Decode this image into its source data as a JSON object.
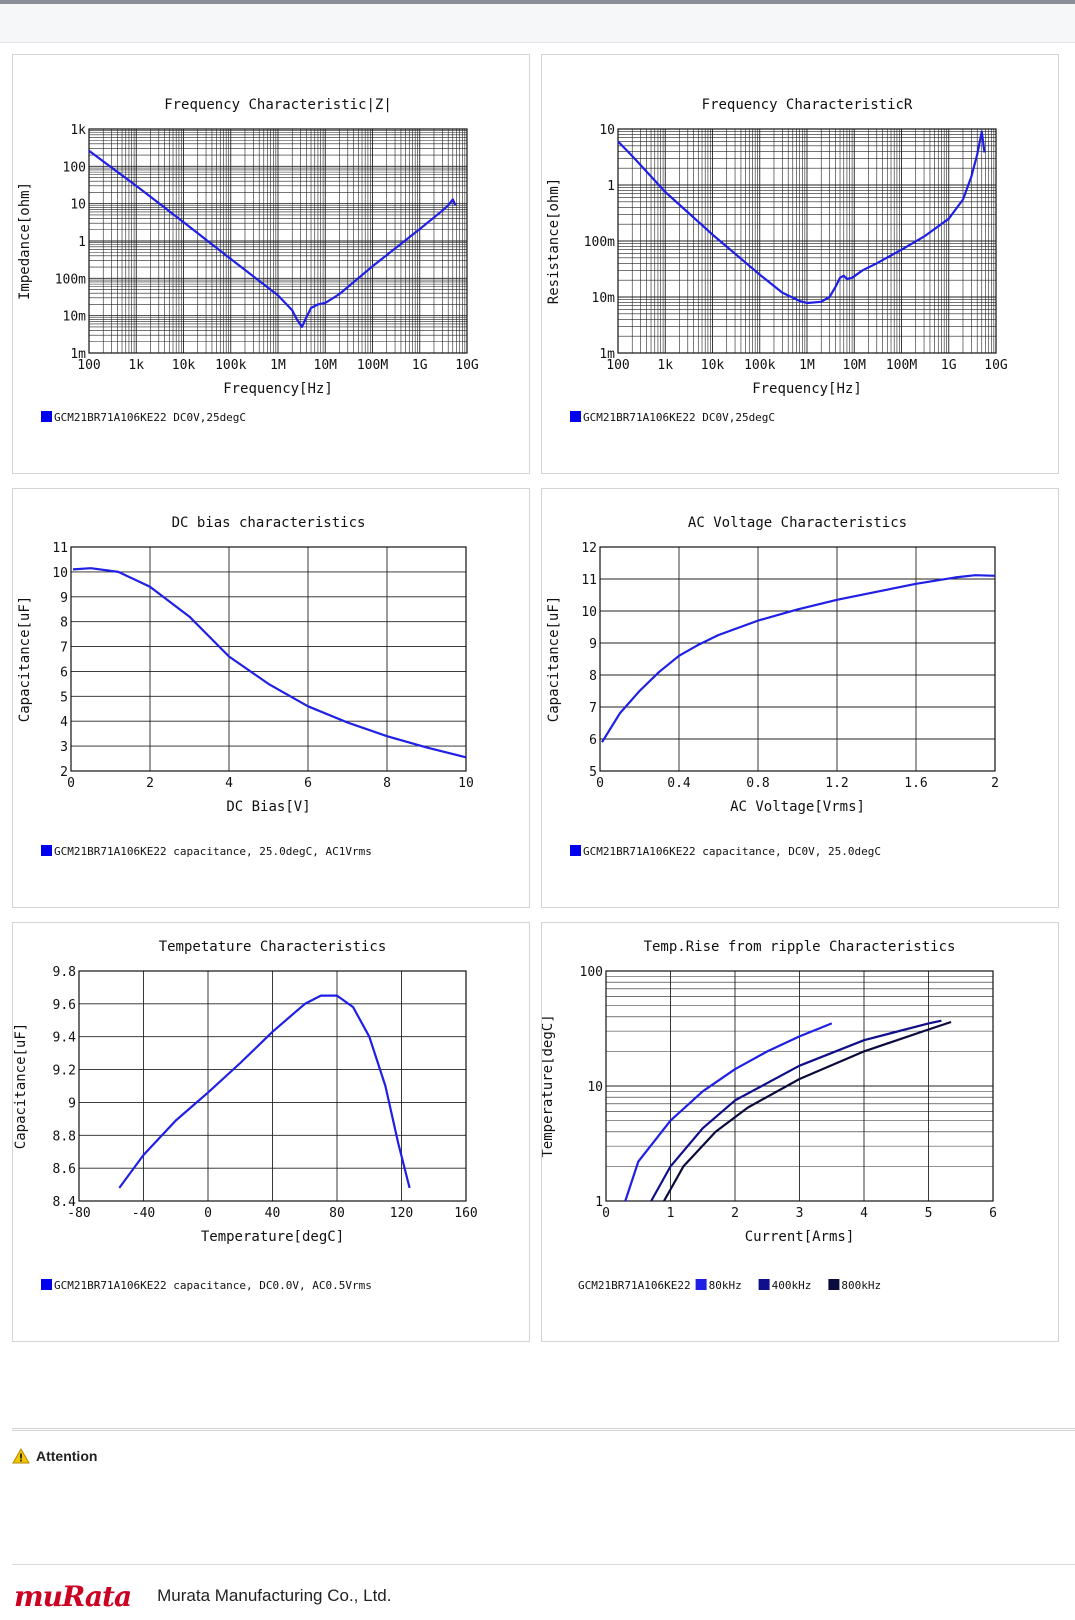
{
  "colors": {
    "series_blue": "#1f1fe6",
    "series_navy": "#0f0f8c",
    "series_dark": "#0a0a3c",
    "legend_blue": "#0000ee",
    "logo_red": "#cc0022",
    "attention_yellow": "#f5c400"
  },
  "page": {
    "attention_label": "Attention",
    "attention_icon": "warning-icon",
    "logo_text": "muRata",
    "company_name": "Murata Manufacturing Co., Ltd."
  },
  "chart_data": [
    {
      "id": "impedance",
      "type": "line",
      "title": "Frequency  Characteristic|Z|",
      "xlabel": "Frequency[Hz]",
      "ylabel": "Impedance[ohm]",
      "xscale": "log",
      "yscale": "log",
      "xlim": [
        100,
        10000000000
      ],
      "ylim": [
        0.001,
        1000
      ],
      "xticks": [
        100,
        1000,
        10000,
        100000,
        1000000,
        10000000,
        100000000,
        1000000000,
        10000000000
      ],
      "xticklabels": [
        "100",
        "1k",
        "10k",
        "100k",
        "1M",
        "10M",
        "100M",
        "1G",
        "10G"
      ],
      "yticks": [
        0.001,
        0.01,
        0.1,
        1,
        10,
        100,
        1000
      ],
      "yticklabels": [
        "1m",
        "10m",
        "100m",
        "1",
        "10",
        "100",
        "1k"
      ],
      "grid": true,
      "legend": [
        {
          "label": "GCM21BR71A106KE22 DC0V,25degC",
          "color": "#0000ee"
        }
      ],
      "series": [
        {
          "color": "#1f1fe6",
          "points": [
            [
              100,
              260
            ],
            [
              1000,
              30
            ],
            [
              10000,
              3.2
            ],
            [
              100000,
              0.33
            ],
            [
              1000000,
              0.035
            ],
            [
              2000000,
              0.014
            ],
            [
              2500000,
              0.008
            ],
            [
              3200000,
              0.005
            ],
            [
              4000000,
              0.009
            ],
            [
              5000000,
              0.016
            ],
            [
              7000000,
              0.02
            ],
            [
              10000000,
              0.022
            ],
            [
              20000000,
              0.038
            ],
            [
              100000000,
              0.21
            ],
            [
              1000000000,
              2.1
            ],
            [
              3000000000,
              6.5
            ],
            [
              4000000000,
              9
            ],
            [
              5000000000,
              13
            ],
            [
              5700000000,
              9
            ]
          ]
        }
      ]
    },
    {
      "id": "resistance",
      "type": "line",
      "title": "Frequency  CharacteristicR",
      "xlabel": "Frequency[Hz]",
      "ylabel": "Resistance[ohm]",
      "xscale": "log",
      "yscale": "log",
      "xlim": [
        100,
        10000000000
      ],
      "ylim": [
        0.001,
        10
      ],
      "xticks": [
        100,
        1000,
        10000,
        100000,
        1000000,
        10000000,
        100000000,
        1000000000,
        10000000000
      ],
      "xticklabels": [
        "100",
        "1k",
        "10k",
        "100k",
        "1M",
        "10M",
        "100M",
        "1G",
        "10G"
      ],
      "yticks": [
        0.001,
        0.01,
        0.1,
        1,
        10
      ],
      "yticklabels": [
        "1m",
        "10m",
        "100m",
        "1",
        "10"
      ],
      "grid": true,
      "legend": [
        {
          "label": "GCM21BR71A106KE22 DC0V,25degC",
          "color": "#0000ee"
        }
      ],
      "series": [
        {
          "color": "#1f1fe6",
          "points": [
            [
              100,
              6
            ],
            [
              200,
              3.3
            ],
            [
              1000,
              0.75
            ],
            [
              10000,
              0.13
            ],
            [
              100000,
              0.025
            ],
            [
              300000,
              0.012
            ],
            [
              700000,
              0.0085
            ],
            [
              1000000,
              0.0078
            ],
            [
              2000000,
              0.0082
            ],
            [
              3000000,
              0.01
            ],
            [
              4000000,
              0.015
            ],
            [
              5000000,
              0.022
            ],
            [
              6000000,
              0.024
            ],
            [
              7000000,
              0.021
            ],
            [
              9000000,
              0.022
            ],
            [
              15000000,
              0.03
            ],
            [
              30000000,
              0.04
            ],
            [
              100000000,
              0.07
            ],
            [
              300000000,
              0.12
            ],
            [
              1000000000,
              0.25
            ],
            [
              2000000000,
              0.55
            ],
            [
              3000000000,
              1.4
            ],
            [
              4000000000,
              3.5
            ],
            [
              5000000000,
              9
            ],
            [
              5700000000,
              3.8
            ]
          ]
        }
      ]
    },
    {
      "id": "dcbias",
      "type": "line",
      "title": "DC bias characteristics",
      "xlabel": "DC Bias[V]",
      "ylabel": "Capacitance[uF]",
      "xscale": "linear",
      "yscale": "linear",
      "xlim": [
        0,
        10
      ],
      "ylim": [
        2,
        11
      ],
      "xticks": [
        0,
        2,
        4,
        6,
        8,
        10
      ],
      "xticklabels": [
        "0",
        "2",
        "4",
        "6",
        "8",
        "10"
      ],
      "yticks": [
        2,
        3,
        4,
        5,
        6,
        7,
        8,
        9,
        10,
        11
      ],
      "yticklabels": [
        "2",
        "3",
        "4",
        "5",
        "6",
        "7",
        "8",
        "9",
        "10",
        "11"
      ],
      "grid": true,
      "legend": [
        {
          "label": "GCM21BR71A106KE22 capacitance, 25.0degC, AC1Vrms",
          "color": "#0000ee"
        }
      ],
      "series": [
        {
          "color": "#1f1fe6",
          "points": [
            [
              0.05,
              10.1
            ],
            [
              0.5,
              10.15
            ],
            [
              1.2,
              10
            ],
            [
              2,
              9.4
            ],
            [
              3,
              8.2
            ],
            [
              4,
              6.6
            ],
            [
              5,
              5.5
            ],
            [
              6,
              4.6
            ],
            [
              7,
              3.95
            ],
            [
              8,
              3.4
            ],
            [
              9,
              2.95
            ],
            [
              10,
              2.55
            ]
          ]
        }
      ]
    },
    {
      "id": "acvoltage",
      "type": "line",
      "title": "AC Voltage Characteristics",
      "xlabel": "AC Voltage[Vrms]",
      "ylabel": "Capacitance[uF]",
      "xscale": "linear",
      "yscale": "linear",
      "xlim": [
        0,
        2
      ],
      "ylim": [
        5,
        12
      ],
      "xticks": [
        0,
        0.4,
        0.8,
        1.2,
        1.6,
        2
      ],
      "xticklabels": [
        "0",
        "0.4",
        "0.8",
        "1.2",
        "1.6",
        "2"
      ],
      "yticks": [
        5,
        6,
        7,
        8,
        9,
        10,
        11,
        12
      ],
      "yticklabels": [
        "5",
        "6",
        "7",
        "8",
        "9",
        "10",
        "11",
        "12"
      ],
      "grid": true,
      "legend": [
        {
          "label": "GCM21BR71A106KE22 capacitance, DC0V, 25.0degC",
          "color": "#0000ee"
        }
      ],
      "series": [
        {
          "color": "#1f1fe6",
          "points": [
            [
              0.01,
              5.9
            ],
            [
              0.05,
              6.3
            ],
            [
              0.1,
              6.8
            ],
            [
              0.2,
              7.5
            ],
            [
              0.3,
              8.1
            ],
            [
              0.4,
              8.6
            ],
            [
              0.5,
              8.95
            ],
            [
              0.6,
              9.25
            ],
            [
              0.8,
              9.7
            ],
            [
              1,
              10.05
            ],
            [
              1.2,
              10.35
            ],
            [
              1.4,
              10.6
            ],
            [
              1.6,
              10.85
            ],
            [
              1.8,
              11.05
            ],
            [
              1.9,
              11.12
            ],
            [
              2,
              11.1
            ]
          ]
        }
      ]
    },
    {
      "id": "temperature",
      "type": "line",
      "title": "Tempetature  Characteristics",
      "xlabel": "Temperature[degC]",
      "ylabel": "Capacitance[uF]",
      "xscale": "linear",
      "yscale": "linear",
      "xlim": [
        -80,
        160
      ],
      "ylim": [
        8.4,
        9.8
      ],
      "xticks": [
        -80,
        -40,
        0,
        40,
        80,
        120,
        160
      ],
      "xticklabels": [
        "-80",
        "-40",
        "0",
        "40",
        "80",
        "120",
        "160"
      ],
      "yticks": [
        8.4,
        8.6,
        8.8,
        9,
        9.2,
        9.4,
        9.6,
        9.8
      ],
      "yticklabels": [
        "8.4",
        "8.6",
        "8.8",
        "9",
        "9.2",
        "9.4",
        "9.6",
        "9.8"
      ],
      "grid": true,
      "legend": [
        {
          "label": "GCM21BR71A106KE22 capacitance, DC0.0V, AC0.5Vrms",
          "color": "#0000ee"
        }
      ],
      "series": [
        {
          "color": "#1f1fe6",
          "points": [
            [
              -55,
              8.48
            ],
            [
              -40,
              8.68
            ],
            [
              -20,
              8.89
            ],
            [
              0,
              9.06
            ],
            [
              20,
              9.24
            ],
            [
              40,
              9.43
            ],
            [
              60,
              9.6
            ],
            [
              70,
              9.65
            ],
            [
              80,
              9.65
            ],
            [
              90,
              9.58
            ],
            [
              100,
              9.4
            ],
            [
              110,
              9.1
            ],
            [
              118,
              8.75
            ],
            [
              125,
              8.48
            ]
          ]
        }
      ]
    },
    {
      "id": "ripple",
      "type": "line",
      "title": "Temp.Rise from ripple Characteristics",
      "xlabel": "Current[Arms]",
      "ylabel": "Temperature[degC]",
      "xscale": "linear",
      "yscale": "log",
      "xlim": [
        0,
        6
      ],
      "ylim": [
        1,
        100
      ],
      "xticks": [
        0,
        1,
        2,
        3,
        4,
        5,
        6
      ],
      "xticklabels": [
        "0",
        "1",
        "2",
        "3",
        "4",
        "5",
        "6"
      ],
      "yticks": [
        1,
        10,
        100
      ],
      "yticklabels": [
        "1",
        "10",
        "100"
      ],
      "grid": true,
      "legend_prefix": "GCM21BR71A106KE22",
      "legend": [
        {
          "label": "80kHz",
          "color": "#1f1fe6"
        },
        {
          "label": "400kHz",
          "color": "#0f0f8c"
        },
        {
          "label": "800kHz",
          "color": "#0a0a3c"
        }
      ],
      "series": [
        {
          "name": "80kHz",
          "color": "#1f1fe6",
          "points": [
            [
              0.3,
              1
            ],
            [
              0.5,
              2.2
            ],
            [
              1,
              5
            ],
            [
              1.5,
              9
            ],
            [
              2,
              14
            ],
            [
              2.5,
              20
            ],
            [
              3,
              27
            ],
            [
              3.5,
              35
            ]
          ]
        },
        {
          "name": "400kHz",
          "color": "#0f0f8c",
          "points": [
            [
              0.7,
              1
            ],
            [
              1,
              2
            ],
            [
              1.5,
              4.3
            ],
            [
              2,
              7.5
            ],
            [
              3,
              15
            ],
            [
              4,
              25
            ],
            [
              5,
              35
            ],
            [
              5.2,
              37
            ]
          ]
        },
        {
          "name": "800kHz",
          "color": "#0a0a3c",
          "points": [
            [
              0.9,
              1
            ],
            [
              1.2,
              2
            ],
            [
              1.7,
              4
            ],
            [
              2.2,
              6.5
            ],
            [
              3,
              11.5
            ],
            [
              4,
              20
            ],
            [
              5,
              31
            ],
            [
              5.35,
              36
            ]
          ]
        }
      ]
    }
  ]
}
